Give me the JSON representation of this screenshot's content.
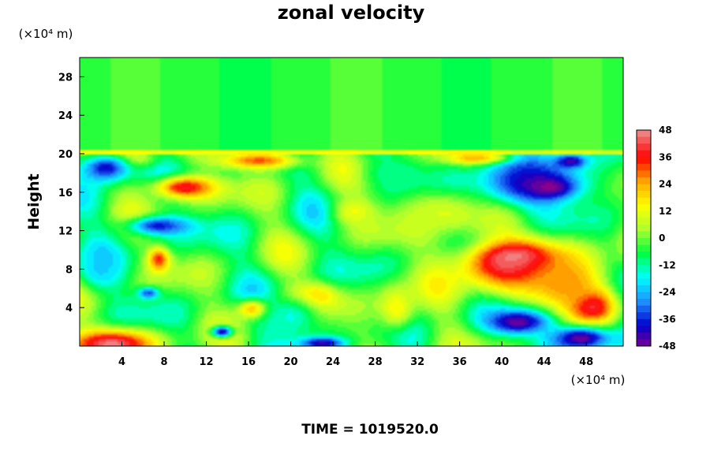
{
  "chart_data": {
    "type": "heatmap",
    "title": "zonal velocity",
    "xlabel": "",
    "ylabel": "Height",
    "x_unit": "(×10⁴ m)",
    "y_unit": "(×10⁴ m)",
    "xlim": [
      0,
      51.5
    ],
    "ylim": [
      0,
      30
    ],
    "xticks": [
      4,
      8,
      12,
      16,
      20,
      24,
      28,
      32,
      36,
      40,
      44,
      48
    ],
    "yticks": [
      4,
      8,
      12,
      16,
      20,
      24,
      28
    ],
    "colorbar": {
      "min": -48,
      "max": 48,
      "ticks": [
        48,
        36,
        24,
        12,
        0,
        -12,
        -24,
        -36,
        -48
      ],
      "colors": [
        "#8B008B",
        "#0000CD",
        "#1E90FF",
        "#00FFFF",
        "#00FF40",
        "#ADFF2F",
        "#FFFF00",
        "#FFA500",
        "#FF0000",
        "#F08080"
      ]
    },
    "background_value": -3,
    "features": [
      {
        "x": 41,
        "y": 8.5,
        "rx": 5.5,
        "ry": 2.8,
        "value": 44
      },
      {
        "x": 41.5,
        "y": 9.2,
        "rx": 2.5,
        "ry": 1.2,
        "value": 50
      },
      {
        "x": 48.5,
        "y": 4.2,
        "rx": 2.2,
        "ry": 1.8,
        "value": 48
      },
      {
        "x": 46,
        "y": 6.5,
        "rx": 4,
        "ry": 3,
        "value": 28
      },
      {
        "x": 3,
        "y": 0.2,
        "rx": 4,
        "ry": 1.5,
        "value": 48
      },
      {
        "x": 10,
        "y": 16.5,
        "rx": 3,
        "ry": 1.2,
        "value": 40
      },
      {
        "x": 17,
        "y": 19.3,
        "rx": 4,
        "ry": 0.9,
        "value": 32
      },
      {
        "x": 38,
        "y": 19.5,
        "rx": 3,
        "ry": 0.6,
        "value": 36
      },
      {
        "x": 22,
        "y": 5,
        "rx": 2.5,
        "ry": 1.5,
        "value": 30
      },
      {
        "x": 16.5,
        "y": 3.8,
        "rx": 1.5,
        "ry": 1,
        "value": 32
      },
      {
        "x": 7.5,
        "y": 9,
        "rx": 1,
        "ry": 1.2,
        "value": 36
      },
      {
        "x": 4,
        "y": 19.5,
        "rx": 3,
        "ry": 1,
        "value": 20
      },
      {
        "x": 35,
        "y": 14,
        "rx": 5,
        "ry": 2.5,
        "value": 12
      },
      {
        "x": 43,
        "y": 17,
        "rx": 5.5,
        "ry": 2.5,
        "value": -40
      },
      {
        "x": 44.5,
        "y": 16.5,
        "rx": 2,
        "ry": 1,
        "value": -48
      },
      {
        "x": 46.5,
        "y": 19.2,
        "rx": 1.5,
        "ry": 0.7,
        "value": -44
      },
      {
        "x": 41.5,
        "y": 2.5,
        "rx": 3,
        "ry": 1.3,
        "value": -46
      },
      {
        "x": 47.5,
        "y": 0.8,
        "rx": 3,
        "ry": 1.3,
        "value": -46
      },
      {
        "x": 2.5,
        "y": 18.5,
        "rx": 2.5,
        "ry": 1.5,
        "value": -38
      },
      {
        "x": 7.5,
        "y": 12.5,
        "rx": 3,
        "ry": 1,
        "value": -36
      },
      {
        "x": 2,
        "y": 8,
        "rx": 2,
        "ry": 2,
        "value": -20
      },
      {
        "x": 20,
        "y": 3,
        "rx": 3,
        "ry": 2.5,
        "value": -14
      },
      {
        "x": 23,
        "y": 0.3,
        "rx": 2,
        "ry": 0.6,
        "value": -42
      },
      {
        "x": 13.5,
        "y": 1.5,
        "rx": 1,
        "ry": 0.6,
        "value": -40
      },
      {
        "x": 6.5,
        "y": 5.5,
        "rx": 1,
        "ry": 0.6,
        "value": -32
      },
      {
        "x": 30,
        "y": 18,
        "rx": 3,
        "ry": 1.5,
        "value": -10
      },
      {
        "x": 26,
        "y": 14,
        "rx": 2,
        "ry": 1.5,
        "value": 14
      },
      {
        "x": 30,
        "y": 4,
        "rx": 2,
        "ry": 2.5,
        "value": 16
      }
    ],
    "upper_layer": {
      "y_from": 20.5,
      "y_to": 30,
      "value": -3
    },
    "time_label": "TIME = 1019520.0"
  }
}
